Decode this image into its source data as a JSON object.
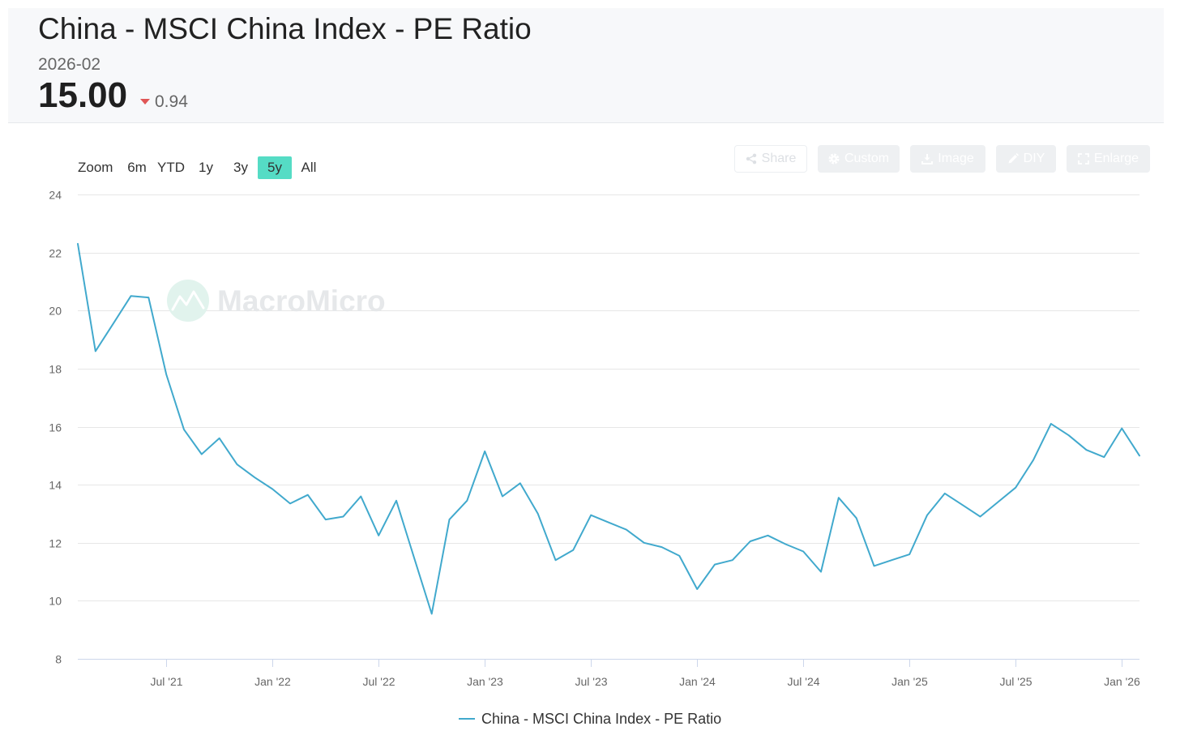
{
  "header": {
    "title": "China - MSCI China Index - PE Ratio",
    "date": "2026-02",
    "value": "15.00",
    "change": "0.94",
    "change_icon": "caret-down-icon",
    "change_color": "#e05656"
  },
  "range_selector": {
    "label": "Zoom",
    "selected_color": "#55dcc5",
    "buttons": [
      {
        "label": "6m",
        "selected": false
      },
      {
        "label": "YTD",
        "selected": false
      },
      {
        "label": "1y",
        "selected": false
      },
      {
        "label": "3y",
        "selected": false
      },
      {
        "label": "5y",
        "selected": true
      },
      {
        "label": "All",
        "selected": false
      }
    ]
  },
  "toolbar": {
    "share": {
      "label": "Share",
      "icon": "share-icon"
    },
    "custom": {
      "label": "Custom",
      "icon": "gear-icon"
    },
    "image": {
      "label": "Image",
      "icon": "download-icon"
    },
    "diy": {
      "label": "DIY",
      "icon": "pencil-icon"
    },
    "enlarge": {
      "label": "Enlarge",
      "icon": "expand-icon"
    }
  },
  "watermark": {
    "text": "MacroMicro",
    "icon": "macromicro-logo-icon"
  },
  "chart_data": {
    "type": "line",
    "x": [
      "2021-02",
      "2021-03",
      "2021-04",
      "2021-05",
      "2021-06",
      "2021-07",
      "2021-08",
      "2021-09",
      "2021-10",
      "2021-11",
      "2021-12",
      "2022-01",
      "2022-02",
      "2022-03",
      "2022-04",
      "2022-05",
      "2022-06",
      "2022-07",
      "2022-08",
      "2022-09",
      "2022-10",
      "2022-11",
      "2022-12",
      "2023-01",
      "2023-02",
      "2023-03",
      "2023-04",
      "2023-05",
      "2023-06",
      "2023-07",
      "2023-08",
      "2023-09",
      "2023-10",
      "2023-11",
      "2023-12",
      "2024-01",
      "2024-02",
      "2024-03",
      "2024-04",
      "2024-05",
      "2024-06",
      "2024-07",
      "2024-08",
      "2024-09",
      "2024-10",
      "2024-11",
      "2024-12",
      "2025-01",
      "2025-02",
      "2025-03",
      "2025-04",
      "2025-05",
      "2025-06",
      "2025-07",
      "2025-08",
      "2025-09",
      "2025-10",
      "2025-11",
      "2025-12",
      "2026-01",
      "2026-02"
    ],
    "series": [
      {
        "name": "China - MSCI China Index - PE Ratio",
        "color": "#41a9cd",
        "values": [
          22.3,
          18.6,
          19.55,
          20.5,
          20.45,
          17.8,
          15.9,
          15.05,
          15.6,
          14.7,
          14.25,
          13.85,
          13.35,
          13.65,
          12.8,
          12.9,
          13.6,
          12.25,
          13.45,
          11.5,
          9.55,
          12.8,
          13.45,
          15.15,
          13.6,
          14.05,
          13.0,
          11.4,
          11.75,
          12.95,
          12.7,
          12.45,
          12.0,
          11.85,
          11.55,
          10.4,
          11.25,
          11.4,
          12.05,
          12.25,
          11.95,
          11.7,
          11.0,
          13.55,
          12.85,
          11.2,
          11.4,
          11.6,
          12.95,
          13.7,
          13.3,
          12.9,
          13.4,
          13.9,
          14.85,
          16.1,
          15.7,
          15.2,
          14.95,
          15.94,
          15.0
        ]
      }
    ],
    "xlim": [
      "2021-02",
      "2026-02"
    ],
    "ylim": [
      8,
      24
    ],
    "yticks": [
      8,
      10,
      12,
      14,
      16,
      18,
      20,
      22,
      24
    ],
    "xticks": [
      {
        "label": "Jul '21",
        "date": "2021-07"
      },
      {
        "label": "Jan '22",
        "date": "2022-01"
      },
      {
        "label": "Jul '22",
        "date": "2022-07"
      },
      {
        "label": "Jan '23",
        "date": "2023-01"
      },
      {
        "label": "Jul '23",
        "date": "2023-07"
      },
      {
        "label": "Jan '24",
        "date": "2024-01"
      },
      {
        "label": "Jul '24",
        "date": "2024-07"
      },
      {
        "label": "Jan '25",
        "date": "2025-01"
      },
      {
        "label": "Jul '25",
        "date": "2025-07"
      },
      {
        "label": "Jan '26",
        "date": "2026-01"
      }
    ],
    "grid": true,
    "legend": "bottom-center"
  }
}
